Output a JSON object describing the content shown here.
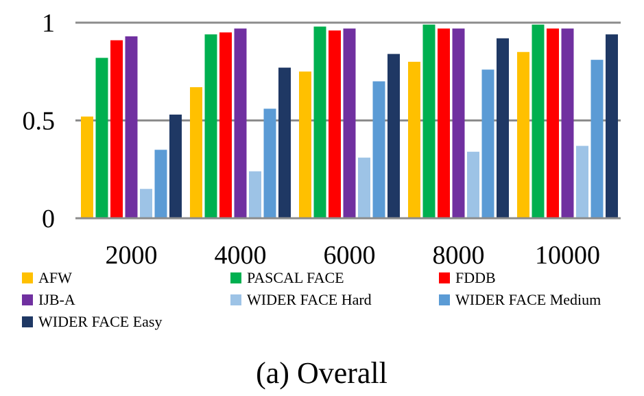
{
  "chart_data": {
    "type": "bar",
    "categories": [
      "2000",
      "4000",
      "6000",
      "8000",
      "10000"
    ],
    "series": [
      {
        "name": "AFW",
        "color": "#FFC000",
        "values": [
          0.52,
          0.67,
          0.75,
          0.8,
          0.85
        ]
      },
      {
        "name": "PASCAL FACE",
        "color": "#00B050",
        "values": [
          0.82,
          0.94,
          0.98,
          0.99,
          0.99
        ]
      },
      {
        "name": "FDDB",
        "color": "#FF0000",
        "values": [
          0.91,
          0.95,
          0.96,
          0.97,
          0.97
        ]
      },
      {
        "name": "IJB-A",
        "color": "#7030A0",
        "values": [
          0.93,
          0.97,
          0.97,
          0.97,
          0.97
        ]
      },
      {
        "name": "WIDER FACE Hard",
        "color": "#9DC3E6",
        "values": [
          0.15,
          0.24,
          0.31,
          0.34,
          0.37
        ]
      },
      {
        "name": "WIDER FACE Medium",
        "color": "#5B9BD5",
        "values": [
          0.35,
          0.56,
          0.7,
          0.76,
          0.81
        ]
      },
      {
        "name": "WIDER FACE Easy",
        "color": "#1F3864",
        "values": [
          0.53,
          0.77,
          0.84,
          0.92,
          0.94
        ]
      }
    ],
    "yticks": [
      "0",
      "0.5",
      "1"
    ],
    "ylim": [
      0,
      1
    ],
    "grid": true,
    "legend_position": "bottom",
    "caption": "(a) Overall"
  }
}
